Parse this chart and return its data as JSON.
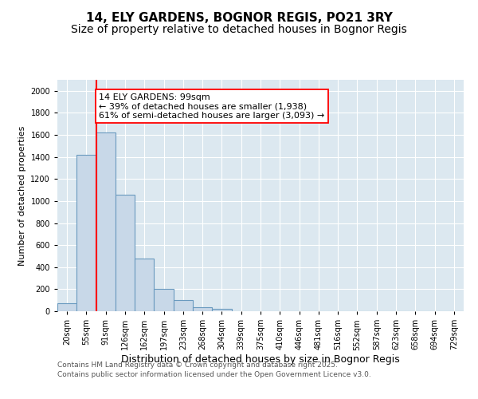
{
  "title_line1": "14, ELY GARDENS, BOGNOR REGIS, PO21 3RY",
  "title_line2": "Size of property relative to detached houses in Bognor Regis",
  "xlabel": "Distribution of detached houses by size in Bognor Regis",
  "ylabel": "Number of detached properties",
  "categories": [
    "20sqm",
    "55sqm",
    "91sqm",
    "126sqm",
    "162sqm",
    "197sqm",
    "233sqm",
    "268sqm",
    "304sqm",
    "339sqm",
    "375sqm",
    "410sqm",
    "446sqm",
    "481sqm",
    "516sqm",
    "552sqm",
    "587sqm",
    "623sqm",
    "658sqm",
    "694sqm",
    "729sqm"
  ],
  "values": [
    75,
    1420,
    1620,
    1060,
    480,
    205,
    105,
    35,
    20,
    0,
    0,
    0,
    0,
    0,
    0,
    0,
    0,
    0,
    0,
    0,
    0
  ],
  "bar_color": "#c8d8e8",
  "bar_edge_color": "#6a9abf",
  "red_line_index": 2,
  "annotation_text": "14 ELY GARDENS: 99sqm\n← 39% of detached houses are smaller (1,938)\n61% of semi-detached houses are larger (3,093) →",
  "ylim": [
    0,
    2100
  ],
  "yticks": [
    0,
    200,
    400,
    600,
    800,
    1000,
    1200,
    1400,
    1600,
    1800,
    2000
  ],
  "background_color": "#ffffff",
  "plot_bg_color": "#dce8f0",
  "footer_line1": "Contains HM Land Registry data © Crown copyright and database right 2025.",
  "footer_line2": "Contains public sector information licensed under the Open Government Licence v3.0.",
  "title_fontsize": 11,
  "subtitle_fontsize": 10,
  "tick_fontsize": 7,
  "xlabel_fontsize": 9,
  "ylabel_fontsize": 8,
  "footer_fontsize": 6.5,
  "annotation_fontsize": 8
}
